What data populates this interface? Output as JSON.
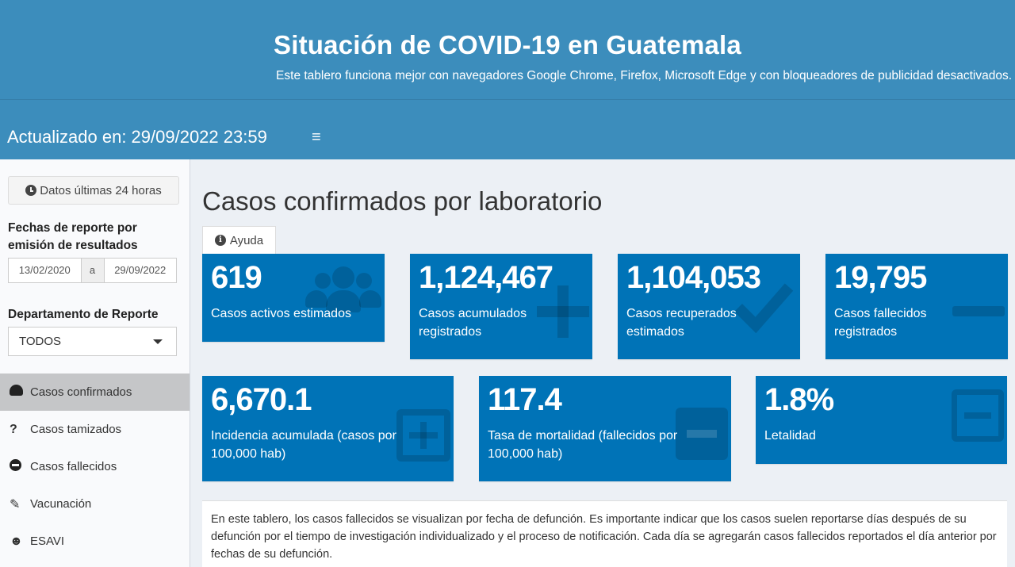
{
  "header": {
    "title": "Situación de COVID-19 en Guatemala",
    "subtitle": "Este tablero funciona mejor con navegadores Google Chrome, Firefox, Microsoft Edge y con bloqueadores de publicidad desactivados."
  },
  "navbar": {
    "updated": "Actualizado en: 29/09/2022 23:59",
    "menu_icon": "≡"
  },
  "sidebar": {
    "btn_24h": "Datos últimas 24 horas",
    "dates_label": "Fechas de reporte por emisión de resultados",
    "date_from": "13/02/2020",
    "date_sep": "a",
    "date_to": "29/09/2022",
    "dept_label": "Departamento de Reporte",
    "dept_value": "TODOS",
    "menu": [
      {
        "label": "Casos confirmados",
        "icon": "dashboard-icon",
        "active": true
      },
      {
        "label": "Casos tamizados",
        "icon": "question-icon",
        "glyph": "?"
      },
      {
        "label": "Casos fallecidos",
        "icon": "minus-circle-icon"
      },
      {
        "label": "Vacunación",
        "icon": "syringe-icon",
        "glyph": "✎"
      },
      {
        "label": "ESAVI",
        "icon": "head-icon",
        "glyph": "☻"
      }
    ]
  },
  "main": {
    "title": "Casos confirmados por laboratorio",
    "help_tab": "Ayuda",
    "row1": [
      {
        "value": "619",
        "label": "Casos activos estimados",
        "icon": "users-icon"
      },
      {
        "value": "1,124,467",
        "label": "Casos acumulados registrados",
        "icon": "plus-icon"
      },
      {
        "value": "1,104,053",
        "label": "Casos recuperados estimados",
        "icon": "check-icon"
      },
      {
        "value": "19,795",
        "label": "Casos fallecidos registrados",
        "icon": "minus-icon"
      }
    ],
    "row2": [
      {
        "value": "6,670.1",
        "label": "Incidencia acumulada (casos por 100,000 hab)",
        "icon": "plus-square-icon"
      },
      {
        "value": "117.4",
        "label": "Tasa de mortalidad (fallecidos por 100,000 hab)",
        "icon": "minus-square-icon"
      },
      {
        "value": "1.8%",
        "label": "Letalidad",
        "icon": "minus-square-outline-icon"
      }
    ],
    "note": "En este tablero, los casos fallecidos se visualizan por fecha de defunción. Es importante indicar que los casos suelen reportarse días después de su defunción por el tiempo de investigación individualizado y el proceso de notificación. Cada día se agregarán casos fallecidos reportados el día anterior por fechas de su defunción."
  },
  "colors": {
    "header_bg": "#3c8dbc",
    "box_bg": "#0073b7",
    "body_bg": "#ecf0f5",
    "sidebar_bg": "#f9fafc",
    "active_menu": "#c5c6c8"
  }
}
